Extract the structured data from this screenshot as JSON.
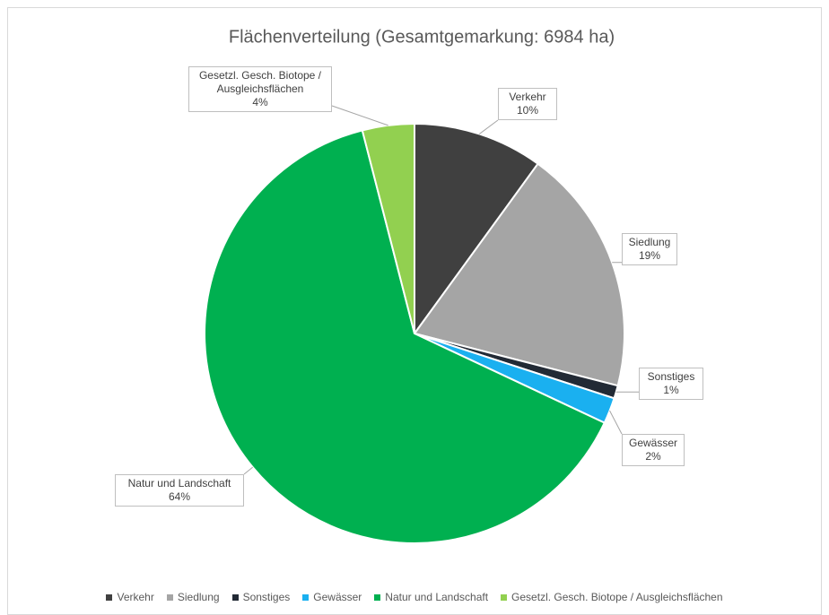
{
  "chart_data": {
    "type": "pie",
    "title": "Flächenverteilung (Gesamtgemarkung: 6984 ha)",
    "categories": [
      "Verkehr",
      "Siedlung",
      "Sonstiges",
      "Gewässer",
      "Natur und Landschaft",
      "Gesetzl. Gesch. Biotope / Ausgleichsflächen"
    ],
    "values": [
      10,
      19,
      1,
      2,
      64,
      4
    ],
    "value_labels": [
      "10%",
      "19%",
      "1%",
      "2%",
      "64%",
      "4%"
    ],
    "colors": [
      "#404040",
      "#a5a5a5",
      "#222a35",
      "#1ab0f0",
      "#00b050",
      "#92d050"
    ],
    "legend": "bottom"
  }
}
